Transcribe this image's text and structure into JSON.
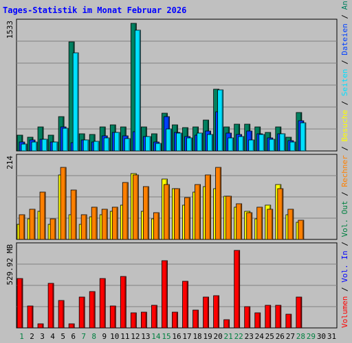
{
  "chart_data": {
    "type": "bar",
    "title": "Tages-Statistik im Monat Februar 2026",
    "days": [
      "1",
      "2",
      "3",
      "4",
      "5",
      "6",
      "7",
      "8",
      "9",
      "10",
      "11",
      "12",
      "13",
      "14",
      "15",
      "16",
      "17",
      "18",
      "19",
      "20",
      "21",
      "22",
      "23",
      "24",
      "25",
      "26",
      "27",
      "28",
      "29",
      "30",
      "31"
    ],
    "weekend_days": [
      "1",
      "7",
      "8",
      "14",
      "15",
      "21",
      "22",
      "28",
      "29"
    ],
    "colors": {
      "weekday_label": "#000000",
      "weekend_label": "#008040",
      "hits": "#008060",
      "files": "#0040ff",
      "pages": "#00e0ff",
      "visits": "#ffff00",
      "sites": "#ff8000",
      "volume": "#ff0000",
      "background": "#c0c0c0",
      "title": "#0000ff"
    },
    "panels": [
      {
        "name": "requests",
        "ymax_label": "1533",
        "ymax": 1533,
        "series": [
          {
            "name": "Anfragen",
            "values": [
              190,
              165,
              285,
              190,
              410,
              1310,
              205,
              200,
              290,
              315,
              285,
              1533,
              285,
              205,
              455,
              315,
              280,
              290,
              370,
              740,
              290,
              325,
              325,
              290,
              225,
              285,
              165,
              460,
              0,
              0,
              0
            ]
          },
          {
            "name": "Dateien",
            "values": [
              110,
              130,
              140,
              110,
              285,
              100,
              130,
              110,
              180,
              225,
              180,
              230,
              175,
              110,
              410,
              225,
              170,
              190,
              240,
              470,
              215,
              200,
              235,
              205,
              160,
              205,
              120,
              360,
              0,
              0,
              0
            ]
          },
          {
            "name": "Seiten",
            "values": [
              80,
              110,
              140,
              110,
              270,
              1180,
              130,
              115,
              160,
              225,
              150,
              1450,
              170,
              90,
              265,
              215,
              160,
              215,
              200,
              730,
              160,
              175,
              130,
              195,
              140,
              210,
              110,
              340,
              0,
              0,
              0
            ]
          }
        ]
      },
      {
        "name": "visits",
        "ymax_label": "214",
        "ymax": 214,
        "series": [
          {
            "name": "Besuche",
            "values": [
              40,
              55,
              75,
              40,
              170,
              65,
              40,
              60,
              65,
              75,
              90,
              175,
              75,
              55,
              160,
              135,
              90,
              125,
              140,
              135,
              115,
              85,
              75,
              55,
              90,
              145,
              65,
              45,
              0,
              0,
              0
            ]
          },
          {
            "name": "Rechner",
            "values": [
              65,
              80,
              125,
              55,
              190,
              130,
              65,
              85,
              80,
              85,
              150,
              170,
              140,
              70,
              145,
              135,
              110,
              145,
              170,
              190,
              115,
              95,
              70,
              85,
              80,
              135,
              80,
              50,
              0,
              0,
              0
            ]
          }
        ]
      },
      {
        "name": "volume",
        "ymax_label": "529.92 MB",
        "ymax": 529.92,
        "series": [
          {
            "name": "Volumen",
            "values": [
              322,
              145,
              25,
              290,
              180,
              25,
              200,
              240,
              325,
              145,
              335,
              98,
              105,
              150,
              440,
              105,
              305,
              118,
              202,
              210,
              55,
              506,
              140,
              100,
              150,
              148,
              90,
              200,
              0,
              0,
              0
            ]
          }
        ]
      }
    ],
    "legend_segments": [
      {
        "text": "Volumen",
        "color": "#ff0000"
      },
      {
        "text": " / ",
        "color": "#000000"
      },
      {
        "text": "Vol. In",
        "color": "#0000ff"
      },
      {
        "text": " / ",
        "color": "#000000"
      },
      {
        "text": "Vol. Out",
        "color": "#008040"
      },
      {
        "text": " / ",
        "color": "#000000"
      },
      {
        "text": "Rechner",
        "color": "#ff8000"
      },
      {
        "text": " / ",
        "color": "#000000"
      },
      {
        "text": "Besuche",
        "color": "#ffff00"
      },
      {
        "text": " / ",
        "color": "#000000"
      },
      {
        "text": "Seiten",
        "color": "#00e0ff"
      },
      {
        "text": " / ",
        "color": "#000000"
      },
      {
        "text": "Dateien",
        "color": "#0040ff"
      },
      {
        "text": " / ",
        "color": "#000000"
      },
      {
        "text": "Anfragen",
        "color": "#008060"
      }
    ]
  }
}
